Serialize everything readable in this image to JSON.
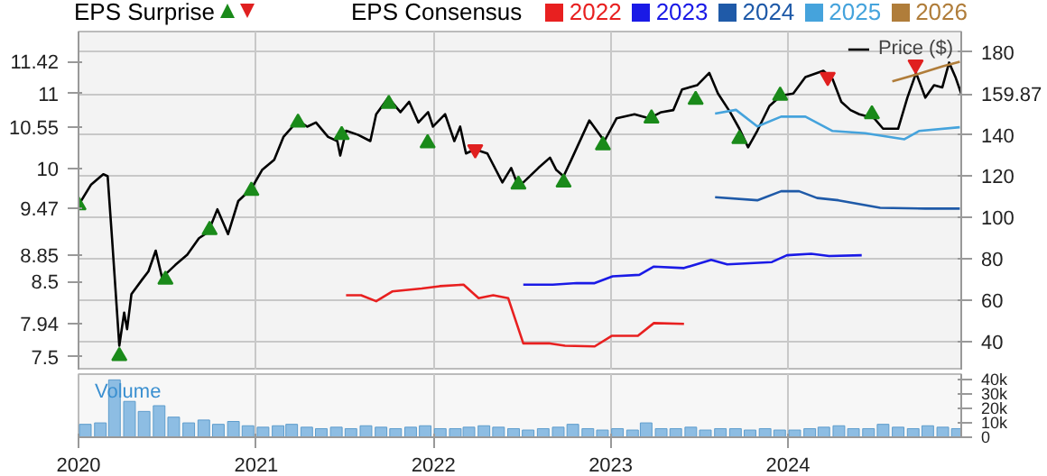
{
  "chart_data": [
    {
      "type": "line",
      "title": "EPS Surprise",
      "legend_title": "EPS Consensus",
      "legend": "top",
      "grid": true,
      "tick_labels": "y",
      "xlim": [
        "2020-01-01",
        "2024-12-23"
      ],
      "xticks": [
        {
          "value": "2020-01-01",
          "label": null
        },
        {
          "value": "2021-01-01",
          "label": null
        },
        {
          "value": "2022-01-01",
          "label": null
        },
        {
          "value": "2023-01-01",
          "label": null
        },
        {
          "value": "2024-01-01",
          "label": null
        }
      ],
      "ylim": [
        7.32,
        11.82
      ],
      "yticks": [
        7.5,
        7.94,
        8.5,
        8.85,
        9.47,
        10,
        10.55,
        11,
        11.42
      ],
      "y2lim": [
        26,
        190
      ],
      "y2ticks": [
        40,
        60,
        80,
        100,
        120,
        140,
        159.87,
        180
      ],
      "series": [
        {
          "name": "Price ($)",
          "color": "#000000",
          "axis": "y2",
          "x": [
            "2020-01-01",
            "2020-01-27",
            "2020-02-21",
            "2020-03-01",
            "2020-03-10",
            "2020-03-25",
            "2020-04-04",
            "2020-04-10",
            "2020-04-19",
            "2020-05-11",
            "2020-05-24",
            "2020-06-08",
            "2020-06-21",
            "2020-07-18",
            "2020-08-12",
            "2020-09-05",
            "2020-09-24",
            "2020-10-13",
            "2020-11-04",
            "2020-11-25",
            "2020-12-22",
            "2021-01-13",
            "2021-02-07",
            "2021-02-26",
            "2021-03-28",
            "2021-04-16",
            "2021-05-04",
            "2021-05-29",
            "2021-06-17",
            "2021-06-23",
            "2021-07-05",
            "2021-07-30",
            "2021-08-24",
            "2021-09-05",
            "2021-09-30",
            "2021-10-25",
            "2021-11-12",
            "2021-12-01",
            "2021-12-21",
            "2021-12-31",
            "2022-01-25",
            "2022-02-13",
            "2022-02-25",
            "2022-03-09",
            "2022-03-28",
            "2022-04-22",
            "2022-05-23",
            "2022-06-10",
            "2022-06-25",
            "2022-07-05",
            "2022-08-05",
            "2022-08-29",
            "2022-09-11",
            "2022-09-26",
            "2022-10-12",
            "2022-11-18",
            "2022-12-19",
            "2023-01-13",
            "2023-02-19",
            "2023-03-21",
            "2023-04-15",
            "2023-05-10",
            "2023-05-28",
            "2023-06-28",
            "2023-07-23",
            "2023-08-10",
            "2023-09-04",
            "2023-09-23",
            "2023-10-11",
            "2023-10-30",
            "2023-11-24",
            "2023-12-18",
            "2024-01-12",
            "2024-02-06",
            "2024-03-14",
            "2024-04-02",
            "2024-04-20",
            "2024-05-09",
            "2024-05-27",
            "2024-06-27",
            "2024-07-15",
            "2024-08-15",
            "2024-09-03",
            "2024-09-21",
            "2024-10-10",
            "2024-10-28",
            "2024-11-14",
            "2024-11-28",
            "2024-12-11",
            "2024-12-23"
          ],
          "values": [
            106,
            116,
            121,
            120,
            90,
            38,
            54,
            46,
            63,
            70,
            74,
            84,
            71,
            77,
            82,
            90,
            93,
            104,
            92,
            108,
            114,
            123,
            128,
            139,
            147,
            144,
            146,
            139,
            137,
            130,
            142,
            140,
            137,
            150,
            158,
            151,
            156,
            146,
            151,
            144,
            150,
            137,
            144,
            131,
            133,
            131,
            117,
            124,
            115,
            117,
            124,
            129,
            123,
            120,
            128,
            147,
            137,
            148,
            150,
            148,
            151,
            152,
            162,
            164,
            170,
            160,
            151,
            143,
            134,
            142,
            154,
            159,
            160,
            168,
            171,
            167,
            156,
            152,
            150,
            148,
            143,
            143,
            158,
            170,
            158,
            164,
            163,
            175,
            168,
            159.87
          ]
        },
        {
          "name": "2022",
          "color": "#e82020",
          "x": [
            "2021-07-05",
            "2021-08-05",
            "2021-09-05",
            "2021-10-08",
            "2021-12-08",
            "2022-01-14",
            "2022-03-04",
            "2022-04-04",
            "2022-05-04",
            "2022-06-04",
            "2022-07-05",
            "2022-08-29",
            "2022-09-29",
            "2022-11-29",
            "2023-01-03",
            "2023-02-26",
            "2023-03-31",
            "2023-06-01"
          ],
          "values": [
            8.32,
            8.32,
            8.24,
            8.37,
            8.41,
            8.44,
            8.46,
            8.28,
            8.32,
            8.28,
            7.68,
            7.68,
            7.65,
            7.64,
            7.78,
            7.78,
            7.95,
            7.94
          ]
        },
        {
          "name": "2023",
          "color": "#1a1ae6",
          "x": [
            "2022-07-05",
            "2022-09-04",
            "2022-10-23",
            "2022-11-29",
            "2023-01-05",
            "2023-03-01",
            "2023-03-31",
            "2023-06-01",
            "2023-07-27",
            "2023-08-29",
            "2023-11-29",
            "2023-12-30",
            "2024-02-18",
            "2024-03-26",
            "2024-06-01"
          ],
          "values": [
            8.46,
            8.46,
            8.48,
            8.48,
            8.57,
            8.59,
            8.7,
            8.68,
            8.79,
            8.73,
            8.76,
            8.85,
            8.87,
            8.84,
            8.85
          ]
        },
        {
          "name": "2024",
          "color": "#1f5aa8",
          "x": [
            "2023-08-04",
            "2023-10-30",
            "2023-12-18",
            "2024-01-24",
            "2024-03-01",
            "2024-04-14",
            "2024-07-09",
            "2024-10-10",
            "2024-12-20"
          ],
          "values": [
            9.62,
            9.58,
            9.7,
            9.7,
            9.61,
            9.58,
            9.48,
            9.47,
            9.47
          ]
        },
        {
          "name": "2025",
          "color": "#45a3dc",
          "x": [
            "2023-08-04",
            "2023-09-16",
            "2023-10-30",
            "2023-12-18",
            "2024-02-06",
            "2024-04-02",
            "2024-06-08",
            "2024-08-28",
            "2024-09-27",
            "2024-12-20"
          ],
          "values": [
            10.73,
            10.78,
            10.56,
            10.69,
            10.69,
            10.5,
            10.47,
            10.39,
            10.5,
            10.55
          ]
        },
        {
          "name": "2026",
          "color": "#b07d3a",
          "x": [
            "2024-08-03",
            "2024-09-27",
            "2024-11-15",
            "2024-12-20"
          ],
          "values": [
            11.16,
            11.26,
            11.36,
            11.42
          ]
        },
        {
          "type": "scatter",
          "marker": "triangle",
          "color": "#1a8a1a",
          "axis": "y2",
          "x": [
            "2020-01-01",
            "2020-03-25",
            "2020-06-28",
            "2020-09-27",
            "2020-12-22",
            "2021-03-28",
            "2021-06-26",
            "2021-10-01",
            "2021-12-20",
            "2022-06-25",
            "2022-09-26",
            "2022-12-16",
            "2023-03-26",
            "2023-06-25",
            "2023-09-23",
            "2023-12-16",
            "2024-06-22"
          ],
          "values": [
            106,
            33,
            70,
            94,
            113,
            146,
            140,
            155,
            136,
            116,
            117,
            135,
            148,
            157,
            138,
            159,
            150
          ]
        },
        {
          "type": "scatter",
          "color": "#e02020",
          "axis": "y2",
          "x": [
            "2022-03-28",
            "2024-03-23",
            "2024-09-20"
          ],
          "values": [
            133,
            168,
            174
          ]
        }
      ]
    },
    {
      "type": "bar",
      "color": "#8dbde3",
      "grid": "x",
      "annotations": [
        "Volume"
      ],
      "xlim": [
        "2020-01-01",
        "2024-12-23"
      ],
      "xticks": [
        {
          "value": "2020-01-01",
          "label": "2020"
        },
        {
          "value": "2021-01-01",
          "label": "2021"
        },
        {
          "value": "2022-01-01",
          "label": "2022"
        },
        {
          "value": "2023-01-01",
          "label": "2023"
        },
        {
          "value": "2024-01-01",
          "label": "2024"
        }
      ],
      "ylim": [
        0,
        44000
      ],
      "yticks": [
        0,
        {
          "value": 10000,
          "label": "10k"
        },
        {
          "value": 20000,
          "label": "20k"
        },
        {
          "value": 30000,
          "label": "30k"
        },
        {
          "value": 40000,
          "label": "40k"
        }
      ],
      "x": [
        "2020-01-15",
        "2020-02-15",
        "2020-03-15",
        "2020-04-15",
        "2020-05-15",
        "2020-06-15",
        "2020-07-15",
        "2020-08-15",
        "2020-09-15",
        "2020-10-15",
        "2020-11-15",
        "2020-12-15",
        "2021-01-15",
        "2021-02-15",
        "2021-03-15",
        "2021-04-15",
        "2021-05-15",
        "2021-06-15",
        "2021-07-15",
        "2021-08-15",
        "2021-09-15",
        "2021-10-15",
        "2021-11-15",
        "2021-12-15",
        "2022-01-15",
        "2022-02-15",
        "2022-03-15",
        "2022-04-15",
        "2022-05-15",
        "2022-06-15",
        "2022-07-15",
        "2022-08-15",
        "2022-09-15",
        "2022-10-15",
        "2022-11-15",
        "2022-12-15",
        "2023-01-15",
        "2023-02-15",
        "2023-03-15",
        "2023-04-15",
        "2023-05-15",
        "2023-06-15",
        "2023-07-15",
        "2023-08-15",
        "2023-09-15",
        "2023-10-15",
        "2023-11-15",
        "2023-12-15",
        "2024-01-15",
        "2024-02-15",
        "2024-03-15",
        "2024-04-15",
        "2024-05-15",
        "2024-06-15",
        "2024-07-15",
        "2024-08-15",
        "2024-09-15",
        "2024-10-15",
        "2024-11-15",
        "2024-12-15"
      ],
      "values": [
        9000,
        10000,
        40000,
        25000,
        18000,
        22000,
        14000,
        10000,
        12000,
        9000,
        11000,
        8000,
        7000,
        8000,
        9000,
        7000,
        6000,
        7000,
        6000,
        8000,
        7000,
        6000,
        7000,
        8000,
        6000,
        6000,
        7000,
        8000,
        7000,
        6000,
        5000,
        6000,
        7000,
        9000,
        6000,
        5000,
        6000,
        5000,
        10000,
        6000,
        6000,
        7000,
        5000,
        6000,
        6000,
        5000,
        6000,
        5000,
        5000,
        6000,
        7000,
        8000,
        6000,
        6000,
        9000,
        7000,
        6000,
        8000,
        7000,
        6000
      ]
    }
  ]
}
